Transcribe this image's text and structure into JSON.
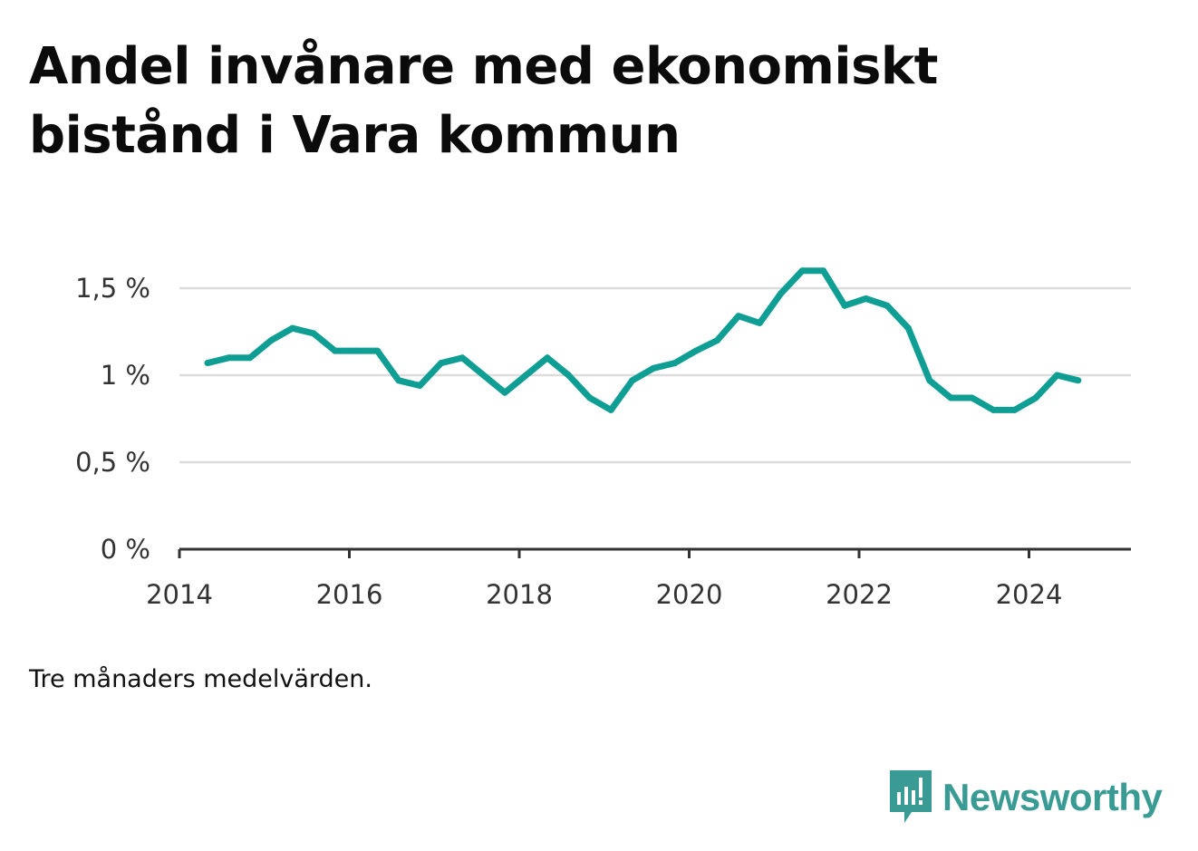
{
  "title": "Andel invånare med ekonomiskt bistånd i Vara kommun",
  "note": "Tre månaders medelvärden.",
  "brand": {
    "name": "Newsworthy",
    "icon": "newsworthy-logo-icon",
    "color": "#3a9b94"
  },
  "colors": {
    "line": "#0e9e94",
    "grid": "#dcdcdc",
    "axis": "#333333"
  },
  "chart_data": {
    "type": "line",
    "title": "Andel invånare med ekonomiskt bistånd i Vara kommun",
    "xlabel": "",
    "ylabel": "",
    "grid": true,
    "xlim": [
      2014,
      2025.2
    ],
    "ylim": [
      0,
      1.5
    ],
    "y_ticks": [
      0,
      0.5,
      1,
      1.5
    ],
    "y_tick_labels": [
      "0 %",
      "0,5 %",
      "1 %",
      "1,5 %"
    ],
    "x_ticks": [
      2014,
      2016,
      2018,
      2020,
      2022,
      2024
    ],
    "x_tick_labels": [
      "2014",
      "2016",
      "2018",
      "2020",
      "2022",
      "2024"
    ],
    "series": [
      {
        "x": [
          2014.33,
          2014.58,
          2014.83,
          2015.08,
          2015.33,
          2015.58,
          2015.83,
          2016.08,
          2016.33,
          2016.58,
          2016.83,
          2017.08,
          2017.33,
          2017.58,
          2017.83,
          2018.08,
          2018.33,
          2018.58,
          2018.83,
          2019.08,
          2019.33,
          2019.58,
          2019.83,
          2020.08,
          2020.33,
          2020.58,
          2020.83,
          2021.08,
          2021.33,
          2021.58,
          2021.83,
          2022.08,
          2022.33,
          2022.58,
          2022.83,
          2023.08,
          2023.33,
          2023.58,
          2023.83,
          2024.08,
          2024.33,
          2024.58
        ],
        "values": [
          1.07,
          1.1,
          1.1,
          1.2,
          1.27,
          1.24,
          1.14,
          1.14,
          1.14,
          0.97,
          0.94,
          1.07,
          1.1,
          1.0,
          0.9,
          1.0,
          1.1,
          1.0,
          0.87,
          0.8,
          0.97,
          1.04,
          1.07,
          1.14,
          1.2,
          1.34,
          1.3,
          1.47,
          1.6,
          1.6,
          1.4,
          1.44,
          1.4,
          1.27,
          0.97,
          0.87,
          0.87,
          0.8,
          0.8,
          0.87,
          1.0,
          0.97
        ]
      }
    ]
  }
}
